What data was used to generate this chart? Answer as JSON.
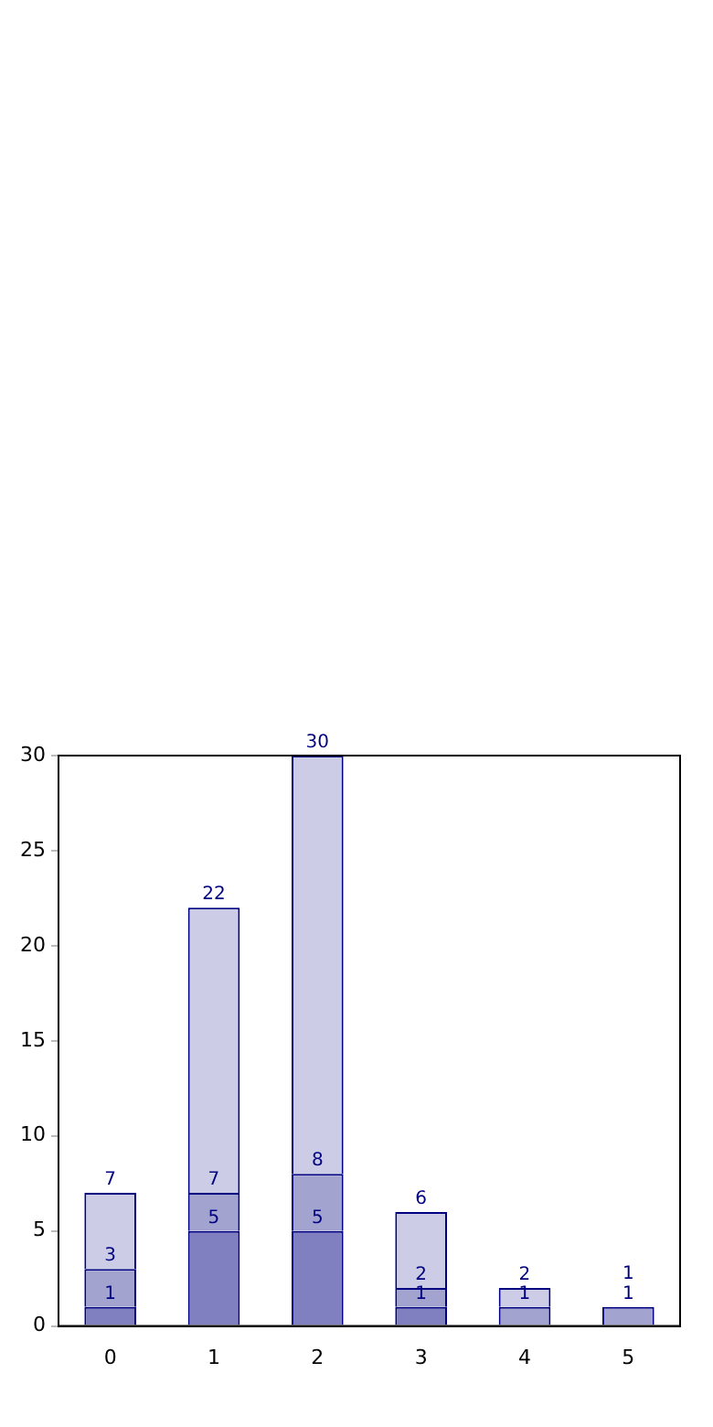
{
  "chart_data": {
    "type": "bar",
    "stacked": true,
    "categories": [
      "0",
      "1",
      "2",
      "3",
      "4",
      "5"
    ],
    "series": [
      {
        "color": "#8080c0",
        "values": [
          1,
          5,
          5,
          1,
          0,
          0
        ]
      },
      {
        "color": "#a3a3d0",
        "values": [
          2,
          2,
          3,
          1,
          1,
          1
        ]
      },
      {
        "color": "#cccce6",
        "values": [
          4,
          15,
          22,
          4,
          1,
          0
        ]
      }
    ],
    "annotations": [
      {
        "text": "1",
        "x": "0",
        "y": 1
      },
      {
        "text": "3",
        "x": "0",
        "y": 3
      },
      {
        "text": "7",
        "x": "0",
        "y": 7
      },
      {
        "text": "5",
        "x": "1",
        "y": 5
      },
      {
        "text": "7",
        "x": "1",
        "y": 7
      },
      {
        "text": "22",
        "x": "1",
        "y": 22
      },
      {
        "text": "5",
        "x": "2",
        "y": 5
      },
      {
        "text": "8",
        "x": "2",
        "y": 8
      },
      {
        "text": "30",
        "x": "2",
        "y": 30
      },
      {
        "text": "1",
        "x": "3",
        "y": 1
      },
      {
        "text": "2",
        "x": "3",
        "y": 2
      },
      {
        "text": "6",
        "x": "3",
        "y": 6
      },
      {
        "text": "1",
        "x": "4",
        "y": 1
      },
      {
        "text": "2",
        "x": "4",
        "y": 2
      },
      {
        "text": "1",
        "x": "5",
        "y": 1
      },
      {
        "text": "1",
        "x": "5",
        "y": 1
      }
    ],
    "ylim": [
      0,
      30
    ],
    "yticks": [
      0,
      5,
      10,
      15,
      20,
      25,
      30
    ],
    "grid": false,
    "legend": false
  }
}
